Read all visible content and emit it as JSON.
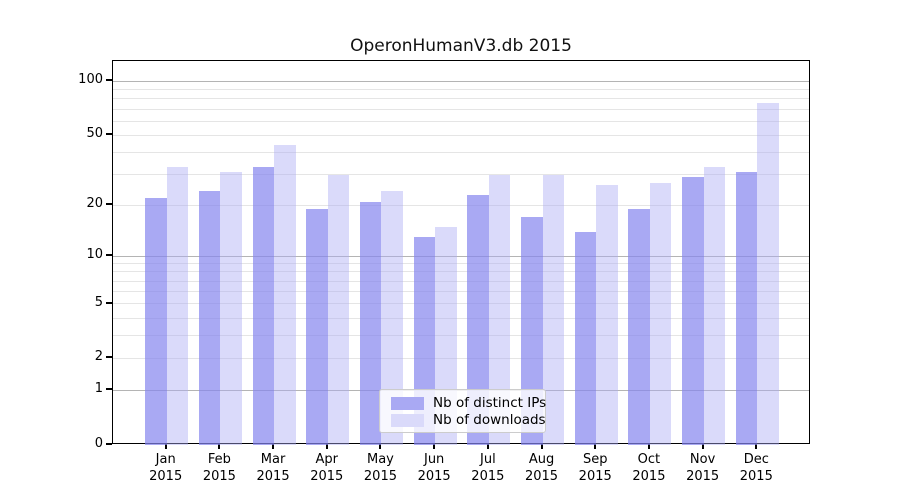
{
  "chart_data": {
    "type": "bar",
    "title": "OperonHumanV3.db 2015",
    "categories": [
      "Jan",
      "Feb",
      "Mar",
      "Apr",
      "May",
      "Jun",
      "Jul",
      "Aug",
      "Sep",
      "Oct",
      "Nov",
      "Dec"
    ],
    "x_tick_year": "2015",
    "categories_full": [
      "Jan 2015",
      "Feb 2015",
      "Mar 2015",
      "Apr 2015",
      "May 2015",
      "Jun 2015",
      "Jul 2015",
      "Aug 2015",
      "Sep 2015",
      "Oct 2015",
      "Nov 2015",
      "Dec 2015"
    ],
    "series": [
      {
        "name": "Nb of distinct IPs",
        "fill": "rgba(132,132,238,0.70)",
        "legend_color": "#a9a9f3",
        "values": [
          22,
          24,
          33,
          19,
          21,
          13,
          23,
          17,
          14,
          19,
          29,
          31
        ]
      },
      {
        "name": "Nb of downloads",
        "fill": "rgba(170,170,243,0.44)",
        "legend_color": "#dadafa",
        "values": [
          33,
          31,
          44,
          30,
          24,
          15,
          30,
          30,
          26,
          27,
          33,
          76
        ]
      }
    ],
    "yscale": "log1p",
    "ylim": [
      0,
      130
    ],
    "yticks": [
      0,
      1,
      2,
      5,
      10,
      20,
      50,
      100
    ],
    "major_gridlines": [
      1,
      10,
      100
    ],
    "minor_gridlines": [
      2,
      3,
      4,
      5,
      6,
      7,
      8,
      9,
      20,
      30,
      40,
      50,
      60,
      70,
      80,
      90
    ],
    "grid": true,
    "legend_position": "lower-center",
    "xlabel": "",
    "ylabel": ""
  },
  "colors": {
    "bar_distinct_ips": "#a9a9f3",
    "bar_downloads": "#dadafa",
    "major_grid": "#b4b4b4",
    "minor_grid": "#e5e5e5",
    "axis": "#000000",
    "legend_border": "#cccccc"
  }
}
